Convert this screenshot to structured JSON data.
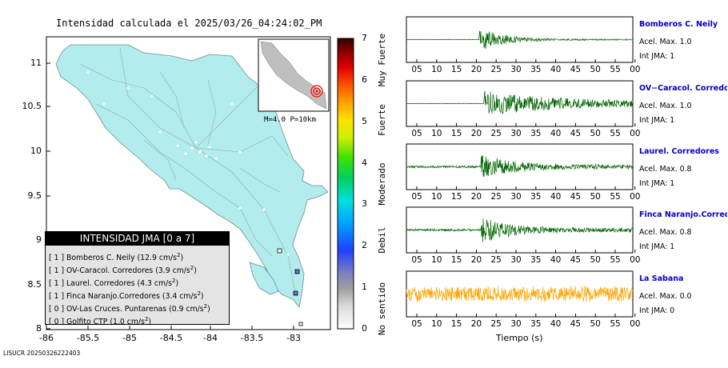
{
  "map": {
    "title": "Intensidad calculada el 2025/03/26_04:24:02_PM",
    "x_ticks": [
      "-86",
      "-85.5",
      "-85",
      "-84.5",
      "-84",
      "-83.5",
      "-83"
    ],
    "y_ticks": [
      "11",
      "10.5",
      "10",
      "9.5",
      "9",
      "8.5",
      "8"
    ],
    "inset_label": "M=4.0 P=10km",
    "footer": "LISUCR 20250326222403"
  },
  "legend": {
    "title": "INTENSIDAD JMA [0 a 7]",
    "rows": [
      {
        "intensity": "[ 1 ]",
        "station": "Bomberos C. Neily (12.9 cm/s",
        "sup": "2",
        "close": ")"
      },
      {
        "intensity": "[ 1 ]",
        "station": "OV-Caracol. Corredores (3.9 cm/s",
        "sup": "2",
        "close": ")"
      },
      {
        "intensity": "[ 1 ]",
        "station": "Laurel. Corredores (4.3 cm/s",
        "sup": "2",
        "close": ")"
      },
      {
        "intensity": "[ 1 ]",
        "station": "Finca Naranjo.Corredores (3.4 cm/s",
        "sup": "2",
        "close": ")"
      },
      {
        "intensity": "[ 0 ]",
        "station": "OV-Las Cruces. Puntarenas (0.9 cm/s",
        "sup": "2",
        "close": ")"
      },
      {
        "intensity": "[ 0 ]",
        "station": "Golfito CTP (1.0 cm/s",
        "sup": "2",
        "close": ")"
      }
    ]
  },
  "colorbar": {
    "ticks": [
      "0",
      "1",
      "2",
      "3",
      "4",
      "5",
      "6",
      "7"
    ],
    "labels": [
      "No sentido",
      "Debil",
      "Moderado",
      "Fuerte",
      "Muy Fuerte"
    ]
  },
  "seismograms": {
    "x_ticks": [
      "05",
      "10",
      "15",
      "20",
      "25",
      "30",
      "35",
      "40",
      "45",
      "50",
      "55",
      "00"
    ],
    "xlabel": "Tiempo (s)",
    "stations": [
      {
        "name": "Bomberos C. Neily",
        "acel": "Acel. Max. 1.0",
        "int": "Int JMA: 1",
        "color": "#006400"
      },
      {
        "name": "OV−Caracol. Corredore",
        "acel": "Acel. Max. 1.0",
        "int": "Int JMA: 1",
        "color": "#006400"
      },
      {
        "name": "Laurel. Corredores",
        "acel": "Acel. Max. 0.8",
        "int": "Int JMA: 1",
        "color": "#006400"
      },
      {
        "name": "Finca Naranjo.Corredor",
        "acel": "Acel. Max. 0.8",
        "int": "Int JMA: 1",
        "color": "#006400"
      },
      {
        "name": "La Sabana",
        "acel": "Acel. Max. 0.0",
        "int": "Int JMA: 0",
        "color": "#ffa500"
      }
    ]
  },
  "chart_data": [
    {
      "type": "heatmap",
      "title": "Intensidad calculada el 2025/03/26_04:24:02_PM",
      "xlim": [
        -86.0,
        -82.5
      ],
      "ylim": [
        8.0,
        11.3
      ],
      "x_ticks": [
        -86,
        -85.5,
        -85,
        -84.5,
        -84,
        -83.5,
        -83
      ],
      "y_ticks": [
        8,
        8.5,
        9,
        9.5,
        10,
        10.5,
        11
      ],
      "colorbar_range": [
        0,
        7
      ],
      "stations": [
        {
          "name": "Bomberos C. Neily",
          "intensity": 1,
          "acceleration": 12.9
        },
        {
          "name": "OV-Caracol. Corredores",
          "intensity": 1,
          "acceleration": 3.9
        },
        {
          "name": "Laurel. Corredores",
          "intensity": 1,
          "acceleration": 4.3
        },
        {
          "name": "Finca Naranjo.Corredores",
          "intensity": 1,
          "acceleration": 3.4
        },
        {
          "name": "OV-Las Cruces. Puntarenas",
          "intensity": 0,
          "acceleration": 0.9
        },
        {
          "name": "Golfito CTP",
          "intensity": 0,
          "acceleration": 1.0
        }
      ]
    },
    {
      "type": "line",
      "xlabel": "Tiempo (s)",
      "x_ticks": [
        "05",
        "10",
        "15",
        "20",
        "25",
        "30",
        "35",
        "40",
        "45",
        "50",
        "55",
        "00"
      ],
      "series": [
        {
          "name": "Bomberos C. Neily",
          "acel_max": 1.0,
          "int_jma": 1,
          "onset_s": 22,
          "peak_s": 25
        },
        {
          "name": "OV−Caracol. Corredore",
          "acel_max": 1.0,
          "int_jma": 1,
          "onset_s": 23,
          "peak_s": 30
        },
        {
          "name": "Laurel. Corredores",
          "acel_max": 0.8,
          "int_jma": 1,
          "onset_s": 23,
          "peak_s": 26
        },
        {
          "name": "Finca Naranjo.Corredor",
          "acel_max": 0.8,
          "int_jma": 1,
          "onset_s": 23,
          "peak_s": 27
        },
        {
          "name": "La Sabana",
          "acel_max": 0.0,
          "int_jma": 0,
          "onset_s": 0,
          "peak_s": 25
        }
      ]
    }
  ]
}
